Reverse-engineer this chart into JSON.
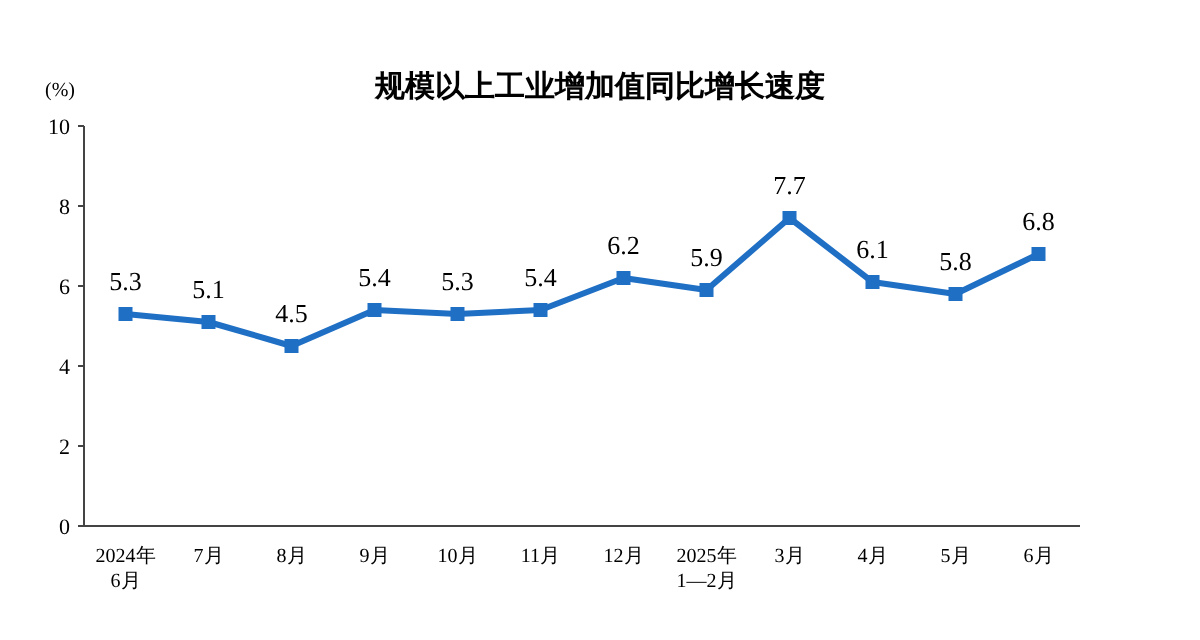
{
  "chart_data": {
    "type": "line",
    "title": "规模以上工业增加值同比增长速度",
    "ylabel": "(%)",
    "categories": [
      "2024年\n6月",
      "7月",
      "8月",
      "9月",
      "10月",
      "11月",
      "12月",
      "2025年\n1—2月",
      "3月",
      "4月",
      "5月",
      "6月"
    ],
    "series": [
      {
        "color": "#1f6fc5",
        "values": [
          5.3,
          5.1,
          4.5,
          5.4,
          5.3,
          5.4,
          6.2,
          5.9,
          7.7,
          6.1,
          5.8,
          6.8
        ]
      }
    ],
    "ylim": [
      0,
      10
    ],
    "yticks": [
      0,
      2,
      4,
      6,
      8,
      10
    ],
    "marker": "square",
    "line_style": "solid",
    "data_labels": true,
    "grid": false
  }
}
